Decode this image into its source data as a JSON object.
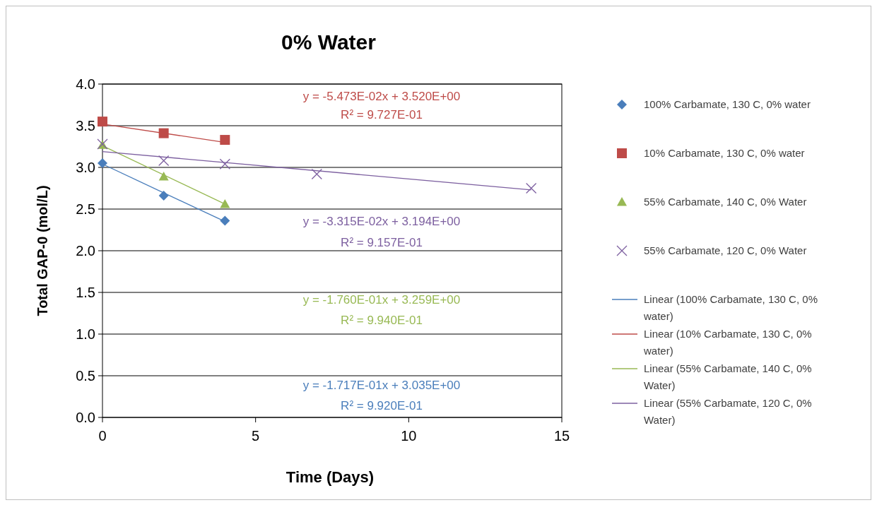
{
  "chart_data": {
    "type": "scatter",
    "title": "0% Water",
    "xlabel": "Time (Days)",
    "ylabel": "Total GAP-0 (mol/L)",
    "xlim": [
      0,
      15
    ],
    "xticks": [
      0,
      5,
      10,
      15
    ],
    "ylim": [
      0,
      4
    ],
    "yticks": [
      {
        "value": 0,
        "label": "0.0"
      },
      {
        "value": 0.5,
        "label": "0.5"
      },
      {
        "value": 1,
        "label": "1.0"
      },
      {
        "value": 1.5,
        "label": "1.5"
      },
      {
        "value": 2,
        "label": "2.0"
      },
      {
        "value": 2.5,
        "label": "2.5"
      },
      {
        "value": 3,
        "label": "3.0"
      },
      {
        "value": 3.5,
        "label": "3.5"
      },
      {
        "value": 4,
        "label": "4.0"
      }
    ],
    "grid": "y",
    "legend": "right",
    "series": [
      {
        "name": "100% Carbamate, 130 C, 0% water",
        "marker": "diamond",
        "color": "#4a7ebb",
        "x": [
          0,
          2,
          4
        ],
        "values": [
          3.05,
          2.66,
          2.36
        ]
      },
      {
        "name": "10% Carbamate, 130 C, 0% water",
        "marker": "square",
        "color": "#be4b48",
        "x": [
          0,
          2,
          4
        ],
        "values": [
          3.55,
          3.41,
          3.33
        ]
      },
      {
        "name": "55% Carbamate, 140 C, 0% Water",
        "marker": "triangle",
        "color": "#98b954",
        "x": [
          0,
          2,
          4
        ],
        "values": [
          3.27,
          2.89,
          2.56
        ]
      },
      {
        "name": "55% Carbamate, 120 C, 0% Water",
        "marker": "cross",
        "color": "#7d60a0",
        "x": [
          0,
          2,
          4,
          7,
          14
        ],
        "values": [
          3.28,
          3.08,
          3.04,
          2.92,
          2.75
        ]
      },
      {
        "name": "Linear (100% Carbamate, 130 C, 0% water)",
        "type": "line",
        "color": "#4a7ebb",
        "x": [
          0,
          4
        ],
        "values": [
          3.04,
          2.35
        ]
      },
      {
        "name": "Linear (10% Carbamate, 130 C, 0% water)",
        "type": "line",
        "color": "#be4b48",
        "x": [
          0,
          4
        ],
        "values": [
          3.52,
          3.3
        ]
      },
      {
        "name": "Linear (55% Carbamate, 140 C, 0% Water)",
        "type": "line",
        "color": "#98b954",
        "x": [
          0,
          4
        ],
        "values": [
          3.26,
          2.56
        ]
      },
      {
        "name": "Linear (55% Carbamate, 120 C, 0% Water)",
        "type": "line",
        "color": "#7d60a0",
        "x": [
          0,
          14
        ],
        "values": [
          3.19,
          2.73
        ]
      }
    ],
    "annotations": [
      "y = -5.473E-02x + 3.520E+00",
      "R² = 9.727E-01",
      "y = -3.315E-02x + 3.194E+00",
      "R² = 9.157E-01",
      "y = -1.760E-01x + 3.259E+00",
      "R² = 9.940E-01",
      "y = -1.717E-01x + 3.035E+00",
      "R² = 9.920E-01"
    ]
  }
}
